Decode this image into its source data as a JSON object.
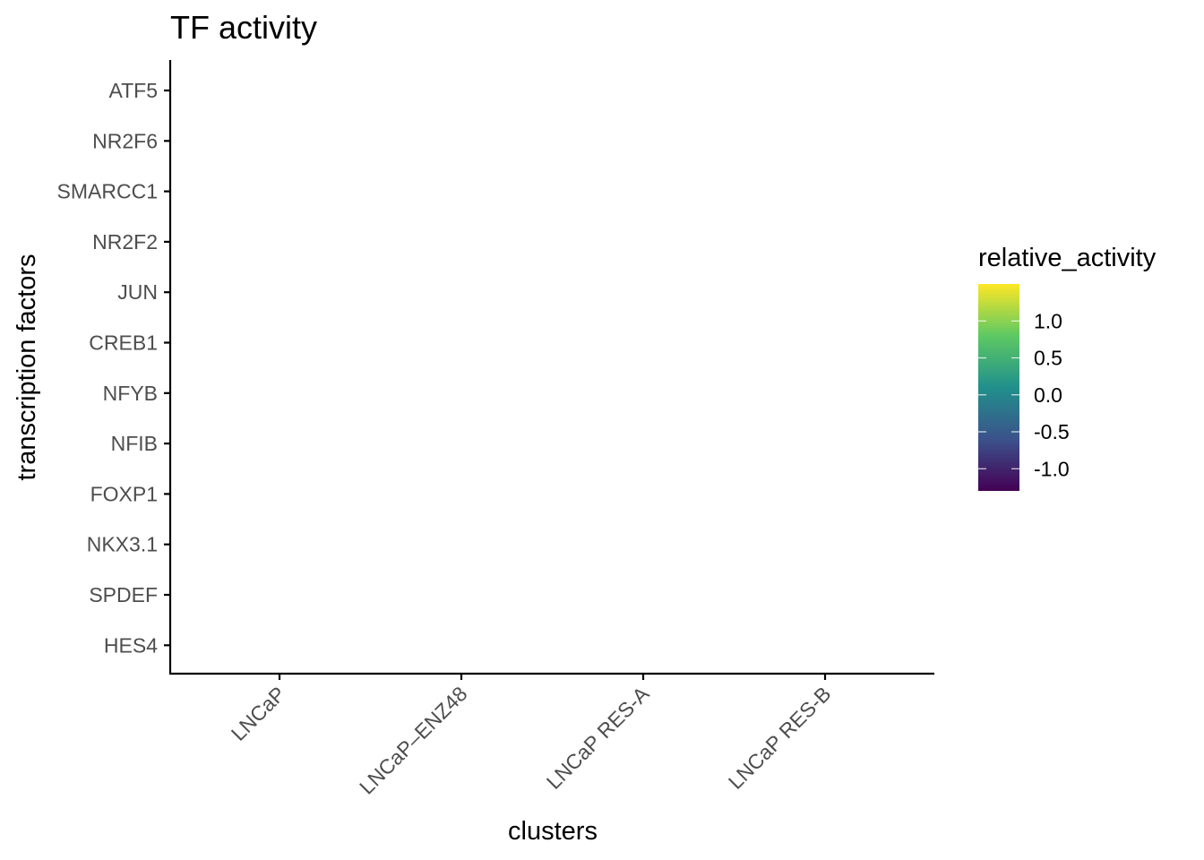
{
  "chart_data": {
    "type": "heatmap",
    "title": "TF activity",
    "xlabel": "clusters",
    "ylabel": "transcription factors",
    "categories_x": [
      "LNCaP",
      "LNCaP–ENZ48",
      "LNCaP RES-A",
      "LNCaP RES-B"
    ],
    "categories_y": [
      "ATF5",
      "NR2F6",
      "SMARCC1",
      "NR2F2",
      "JUN",
      "CREB1",
      "NFYB",
      "NFIB",
      "FOXP1",
      "NKX3.1",
      "SPDEF",
      "HES4"
    ],
    "values": [],
    "grid": false,
    "legend": {
      "title": "relative_activity",
      "placement": "right",
      "colormap": "viridis",
      "range": [
        -1.3,
        1.5
      ],
      "ticks": [
        1.0,
        0.5,
        0.0,
        -0.5,
        -1.0
      ],
      "tick_labels": [
        "1.0",
        "0.5",
        "0.0",
        "-0.5",
        "-1.0"
      ],
      "colors": [
        "#440154",
        "#3b528b",
        "#21908c",
        "#5dc963",
        "#fde725"
      ]
    }
  }
}
